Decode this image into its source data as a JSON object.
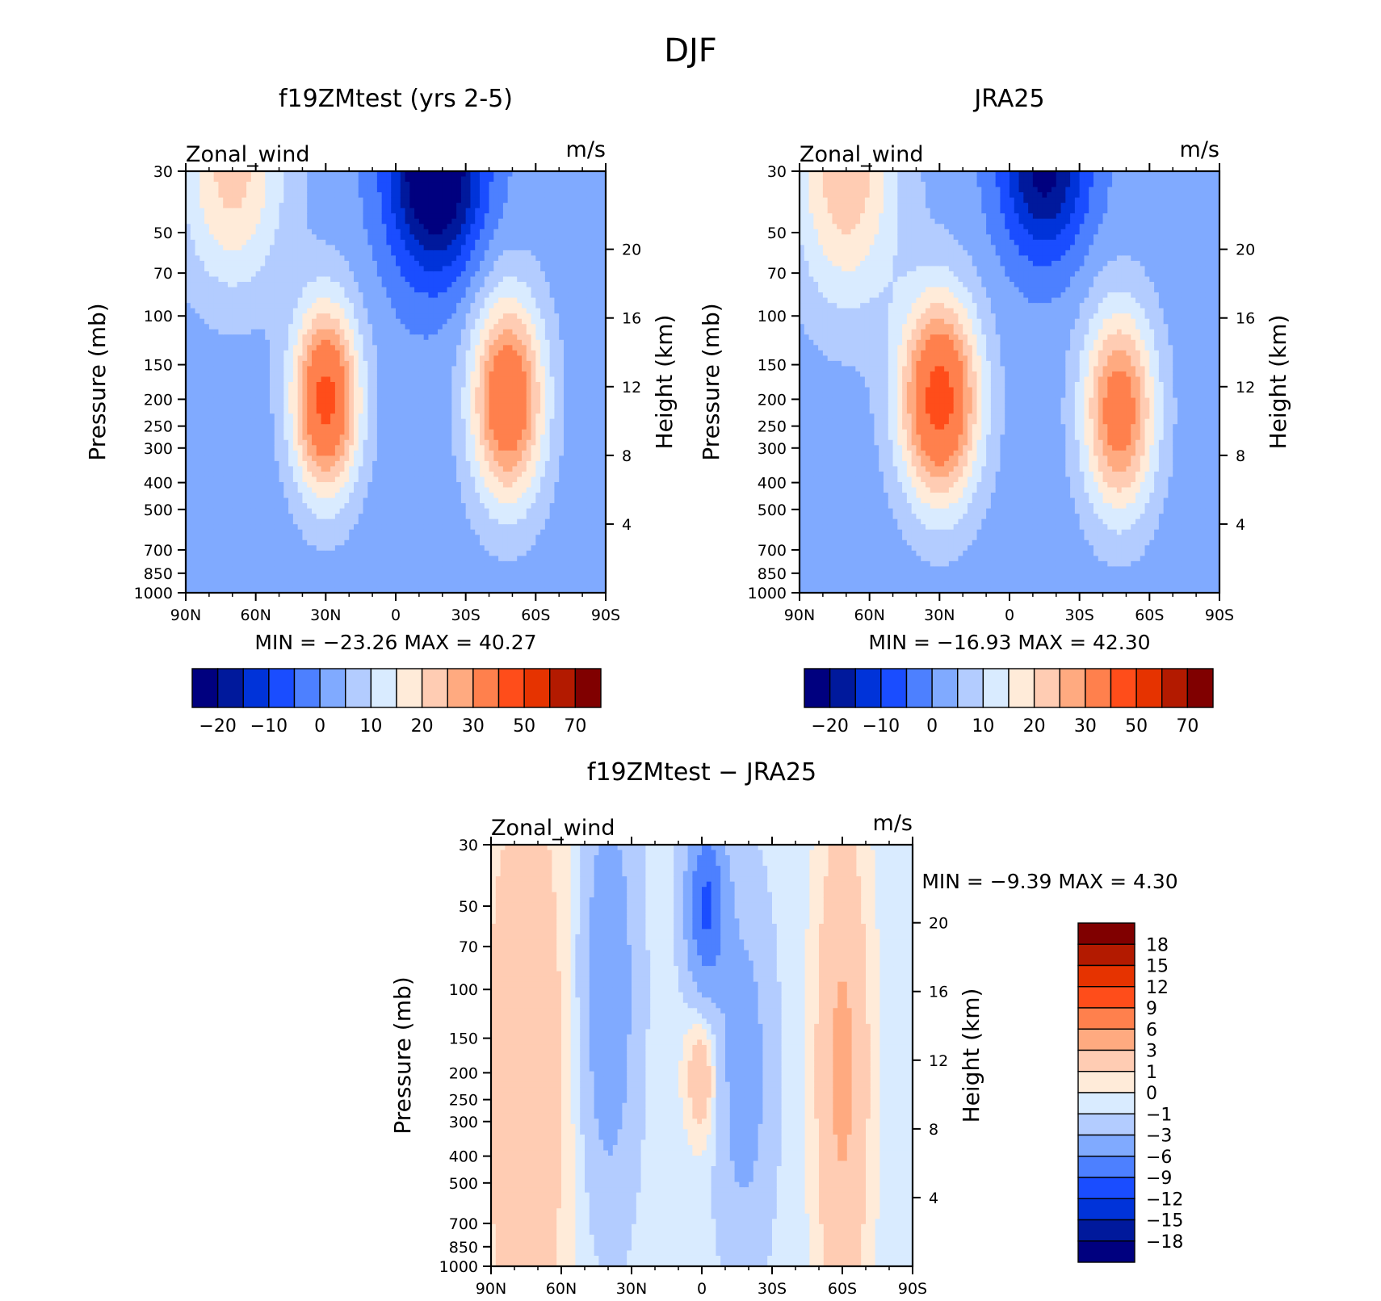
{
  "main_title": "DJF",
  "colors": {
    "full": [
      "#00007f",
      "#00199c",
      "#0033d9",
      "#1a4dff",
      "#4d80ff",
      "#80aaff",
      "#b3ccff",
      "#d9ebff",
      "#ffebd9",
      "#ffccb3",
      "#ffaa80",
      "#ff804d",
      "#ff4d1a",
      "#e63300",
      "#b31a00",
      "#800000"
    ],
    "diff": [
      "#00007f",
      "#00199c",
      "#0033d9",
      "#1a4dff",
      "#4d80ff",
      "#80aaff",
      "#b3ccff",
      "#d9ebff",
      "#ffebd9",
      "#ffccb3",
      "#ffaa80",
      "#ff804d",
      "#ff4d1a",
      "#e63300",
      "#b31a00",
      "#800000"
    ]
  },
  "chart_data": [
    {
      "type": "heatmap",
      "title": "f19ZMtest (yrs 2-5)",
      "left_label": "Zonal_wind",
      "right_label": "m/s",
      "ylabel": "Pressure (mb)",
      "y2label": "Height (km)",
      "x_ticks": [
        "90N",
        "60N",
        "30N",
        "0",
        "30S",
        "60S",
        "90S"
      ],
      "x_values": [
        90,
        60,
        30,
        0,
        -30,
        -60,
        -90
      ],
      "y_ticks": [
        "30",
        "50",
        "70",
        "100",
        "150",
        "200",
        "250",
        "300",
        "400",
        "500",
        "700",
        "850",
        "1000"
      ],
      "y_values": [
        30,
        50,
        70,
        100,
        150,
        200,
        250,
        300,
        400,
        500,
        700,
        850,
        1000
      ],
      "y2_ticks": [
        "20",
        "16",
        "12",
        "8",
        "4"
      ],
      "y2_values": [
        20,
        16,
        12,
        8,
        4
      ],
      "ylim": [
        1000,
        30
      ],
      "xlim": [
        90,
        -90
      ],
      "min_label": "MIN = −23.26",
      "max_label": "MAX =   40.27",
      "min": -23.26,
      "max": 40.27,
      "colorbar_labels": [
        "−20",
        "−10",
        "0",
        "10",
        "20",
        "30",
        "50",
        "70"
      ],
      "levels": [
        -25,
        -20,
        -15,
        -10,
        -5,
        0,
        5,
        10,
        15,
        20,
        25,
        30,
        40,
        50,
        60,
        70
      ],
      "features": [
        {
          "lat": 30,
          "p": 200,
          "sigma_lat": 10,
          "sigma_logp": 0.55,
          "amp": 41
        },
        {
          "lat": -48,
          "p": 200,
          "sigma_lat": 11,
          "sigma_logp": 0.6,
          "amp": 37
        },
        {
          "lat": 70,
          "p": 30,
          "sigma_lat": 16,
          "sigma_logp": 0.7,
          "amp": 20
        },
        {
          "lat": -17,
          "p": 30,
          "sigma_lat": 14,
          "sigma_logp": 0.6,
          "amp": -32
        }
      ],
      "base": 2
    },
    {
      "type": "heatmap",
      "title": "JRA25",
      "left_label": "Zonal_wind",
      "right_label": "m/s",
      "ylabel": "Pressure (mb)",
      "y2label": "Height (km)",
      "x_ticks": [
        "90N",
        "60N",
        "30N",
        "0",
        "30S",
        "60S",
        "90S"
      ],
      "x_values": [
        90,
        60,
        30,
        0,
        -30,
        -60,
        -90
      ],
      "y_ticks": [
        "30",
        "50",
        "70",
        "100",
        "150",
        "200",
        "250",
        "300",
        "400",
        "500",
        "700",
        "850",
        "1000"
      ],
      "y_values": [
        30,
        50,
        70,
        100,
        150,
        200,
        250,
        300,
        400,
        500,
        700,
        850,
        1000
      ],
      "y2_ticks": [
        "20",
        "16",
        "12",
        "8",
        "4"
      ],
      "y2_values": [
        20,
        16,
        12,
        8,
        4
      ],
      "ylim": [
        1000,
        30
      ],
      "xlim": [
        90,
        -90
      ],
      "min_label": "MIN = −16.93",
      "max_label": "MAX =   42.30",
      "min": -16.93,
      "max": 42.3,
      "colorbar_labels": [
        "−20",
        "−10",
        "0",
        "10",
        "20",
        "30",
        "50",
        "70"
      ],
      "levels": [
        -25,
        -20,
        -15,
        -10,
        -5,
        0,
        5,
        10,
        15,
        20,
        25,
        30,
        40,
        50,
        60,
        70
      ],
      "features": [
        {
          "lat": 30,
          "p": 200,
          "sigma_lat": 12,
          "sigma_logp": 0.6,
          "amp": 42
        },
        {
          "lat": -47,
          "p": 220,
          "sigma_lat": 11,
          "sigma_logp": 0.6,
          "amp": 33
        },
        {
          "lat": 70,
          "p": 30,
          "sigma_lat": 16,
          "sigma_logp": 0.8,
          "amp": 22
        },
        {
          "lat": -15,
          "p": 30,
          "sigma_lat": 13,
          "sigma_logp": 0.5,
          "amp": -24
        }
      ],
      "base": 2
    },
    {
      "type": "heatmap",
      "title": "f19ZMtest − JRA25",
      "left_label": "Zonal_wind",
      "right_label": "m/s",
      "ylabel": "Pressure (mb)",
      "y2label": "Height (km)",
      "x_ticks": [
        "90N",
        "60N",
        "30N",
        "0",
        "30S",
        "60S",
        "90S"
      ],
      "x_values": [
        90,
        60,
        30,
        0,
        -30,
        -60,
        -90
      ],
      "y_ticks": [
        "30",
        "50",
        "70",
        "100",
        "150",
        "200",
        "250",
        "300",
        "400",
        "500",
        "700",
        "850",
        "1000"
      ],
      "y_values": [
        30,
        50,
        70,
        100,
        150,
        200,
        250,
        300,
        400,
        500,
        700,
        850,
        1000
      ],
      "y2_ticks": [
        "20",
        "16",
        "12",
        "8",
        "4"
      ],
      "y2_values": [
        20,
        16,
        12,
        8,
        4
      ],
      "ylim": [
        1000,
        30
      ],
      "xlim": [
        90,
        -90
      ],
      "min_label": "MIN =    −9.39",
      "max_label": "MAX =     4.30",
      "min": -9.39,
      "max": 4.3,
      "colorbar_labels": [
        "18",
        "15",
        "12",
        "9",
        "6",
        "3",
        "1",
        "0",
        "−1",
        "−3",
        "−6",
        "−9",
        "−12",
        "−15",
        "−18"
      ],
      "levels": [
        -21,
        -18,
        -15,
        -12,
        -9,
        -6,
        -3,
        -1,
        0,
        1,
        3,
        6,
        9,
        12,
        15,
        18
      ],
      "features": [
        {
          "lat": 75,
          "p": 200,
          "sigma_lat": 14,
          "sigma_logp": 2.0,
          "amp": 3
        },
        {
          "lat": -60,
          "p": 200,
          "sigma_lat": 8,
          "sigma_logp": 1.5,
          "amp": 4
        },
        {
          "lat": 0,
          "p": 200,
          "sigma_lat": 5,
          "sigma_logp": 0.4,
          "amp": 3
        },
        {
          "lat": 40,
          "p": 100,
          "sigma_lat": 8,
          "sigma_logp": 1.2,
          "amp": -5
        },
        {
          "lat": -2,
          "p": 50,
          "sigma_lat": 6,
          "sigma_logp": 0.5,
          "amp": -9
        },
        {
          "lat": -18,
          "p": 200,
          "sigma_lat": 8,
          "sigma_logp": 1.0,
          "amp": -4
        }
      ],
      "base": -0.5
    }
  ]
}
